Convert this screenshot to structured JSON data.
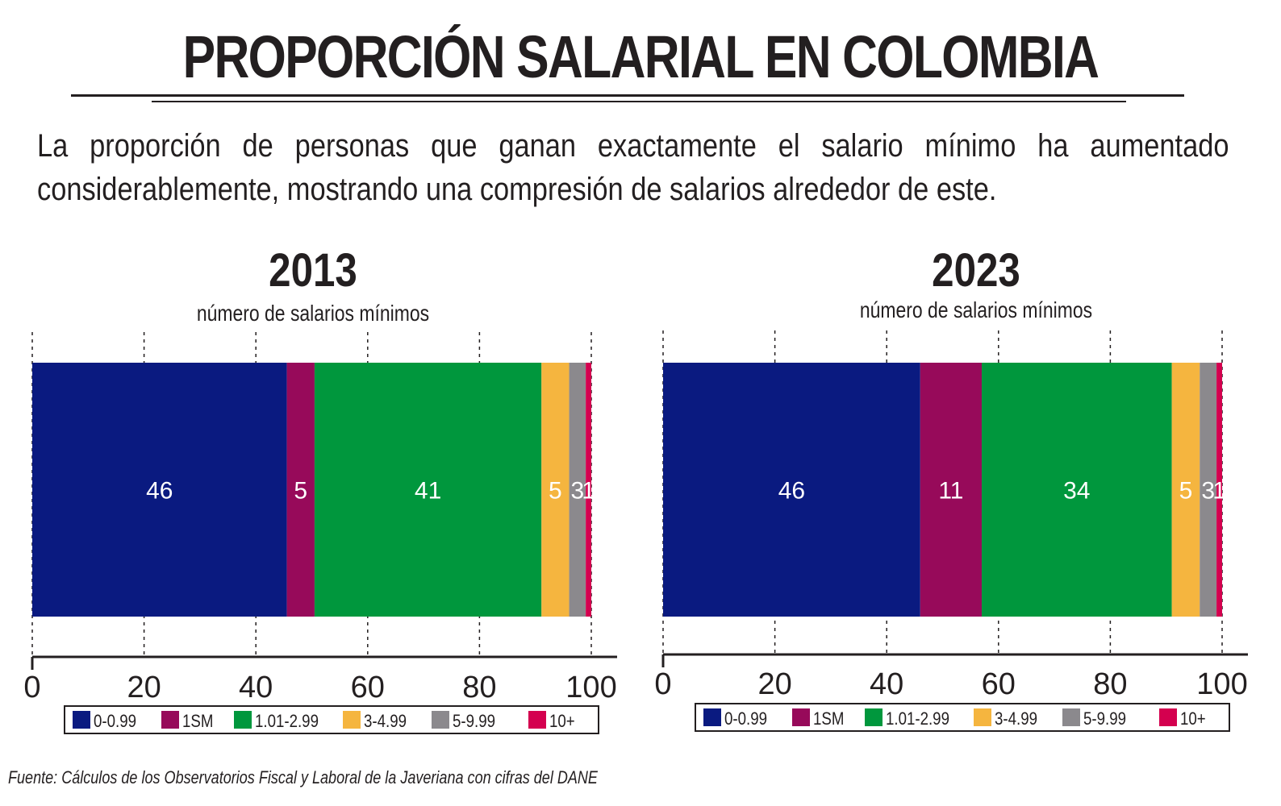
{
  "title": "PROPORCIÓN SALARIAL EN COLOMBIA",
  "subtitle": "La proporción de personas que ganan exactamente el salario mínimo ha aumentado considerablemente, mostrando una compresión de salarios alrededor de este.",
  "source": "Fuente: Cálculos de los Observatorios Fiscal y Laboral de la Javeriana con cifras del DANE",
  "chart_data": [
    {
      "type": "bar",
      "orientation": "horizontal-stacked",
      "title": "2013",
      "xlabel": "número de salarios mínimos",
      "xlim": [
        0,
        100
      ],
      "xticks": [
        "0",
        "20",
        "40",
        "60",
        "80",
        "100"
      ],
      "grid": true,
      "legend_position": "bottom",
      "series": [
        {
          "name": "0-0.99",
          "value": 46,
          "color": "#0a1a80"
        },
        {
          "name": "1SM",
          "value": 5,
          "color": "#970a5a"
        },
        {
          "name": "1.01-2.99",
          "value": 41,
          "color": "#00973d"
        },
        {
          "name": "3-4.99",
          "value": 5,
          "color": "#f5b53f"
        },
        {
          "name": "5-9.99",
          "value": 3,
          "color": "#8b898d"
        },
        {
          "name": "10+",
          "value": 1,
          "color": "#d4004f"
        }
      ]
    },
    {
      "type": "bar",
      "orientation": "horizontal-stacked",
      "title": "2023",
      "xlabel": "número de salarios mínimos",
      "xlim": [
        0,
        100
      ],
      "xticks": [
        "0",
        "20",
        "40",
        "60",
        "80",
        "100"
      ],
      "grid": true,
      "legend_position": "bottom",
      "series": [
        {
          "name": "0-0.99",
          "value": 46,
          "color": "#0a1a80"
        },
        {
          "name": "1SM",
          "value": 11,
          "color": "#970a5a"
        },
        {
          "name": "1.01-2.99",
          "value": 34,
          "color": "#00973d"
        },
        {
          "name": "3-4.99",
          "value": 5,
          "color": "#f5b53f"
        },
        {
          "name": "5-9.99",
          "value": 3,
          "color": "#8b898d"
        },
        {
          "name": "10+",
          "value": 1,
          "color": "#d4004f"
        }
      ]
    }
  ]
}
